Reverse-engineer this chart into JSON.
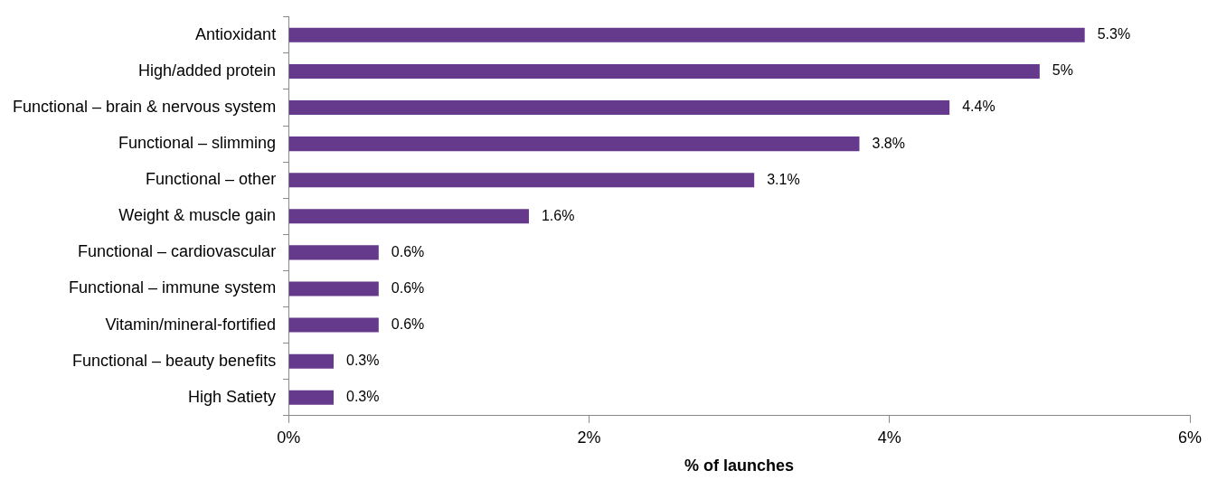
{
  "chart_data": {
    "type": "bar",
    "orientation": "horizontal",
    "xlabel": "% of launches",
    "categories": [
      "Antioxidant",
      "High/added protein",
      "Functional – brain & nervous system",
      "Functional – slimming",
      "Functional – other",
      "Weight & muscle gain",
      "Functional – cardiovascular",
      "Functional – immune system",
      "Vitamin/mineral-fortified",
      "Functional – beauty benefits",
      "High Satiety"
    ],
    "values": [
      5.3,
      5,
      4.4,
      3.8,
      3.1,
      1.6,
      0.6,
      0.6,
      0.6,
      0.3,
      0.3
    ],
    "value_labels": [
      "5.3%",
      "5%",
      "4.4%",
      "3.8%",
      "3.1%",
      "1.6%",
      "0.6%",
      "0.6%",
      "0.6%",
      "0.3%",
      "0.3%"
    ],
    "color": "#65398b",
    "xlim": [
      0,
      6
    ],
    "xticks": [
      {
        "value": 0,
        "label": "0%"
      },
      {
        "value": 2,
        "label": "2%"
      },
      {
        "value": 4,
        "label": "4%"
      },
      {
        "value": 6,
        "label": "6%"
      }
    ],
    "grid": false,
    "legend": false
  }
}
